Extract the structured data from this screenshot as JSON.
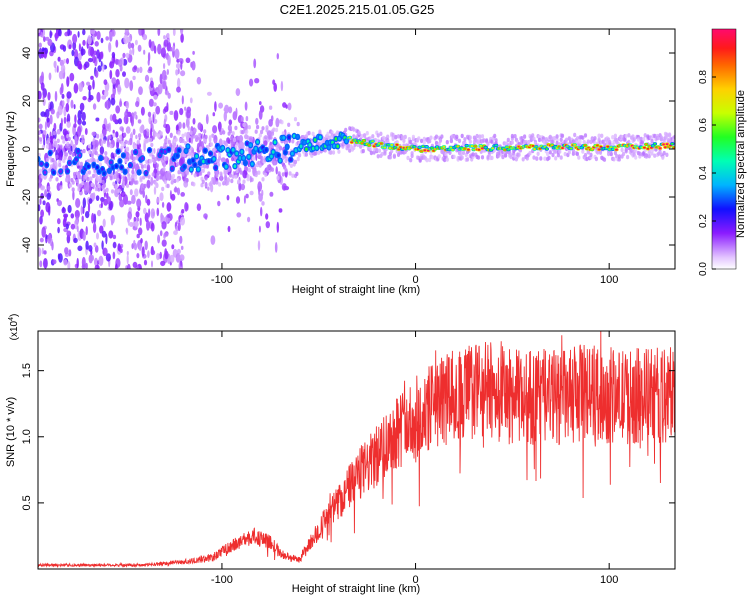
{
  "title": "C2E1.2025.215.01.05.G25",
  "chart_data": [
    {
      "type": "heatmap",
      "xlabel": "Height of straight line (km)",
      "ylabel": "Frequency (Hz)",
      "xlim": [
        -195,
        134
      ],
      "ylim": [
        -50,
        50
      ],
      "x_ticks": [
        -100,
        0,
        100
      ],
      "y_ticks": [
        -40,
        -20,
        0,
        20,
        40
      ],
      "colorbar": {
        "label": "Normalized spectral amplitude",
        "range": [
          0.0,
          1.0
        ],
        "ticks": [
          0.0,
          0.2,
          0.4,
          0.6,
          0.8
        ]
      },
      "ridge": {
        "description_points": [
          [
            -195,
            -5
          ],
          [
            -150,
            -6
          ],
          [
            -120,
            -4
          ],
          [
            -100,
            -3
          ],
          [
            -80,
            -1
          ],
          [
            -60,
            1
          ],
          [
            -45,
            3
          ],
          [
            -35,
            4
          ],
          [
            -20,
            2
          ],
          [
            0,
            0
          ],
          [
            20,
            0.5
          ],
          [
            50,
            0.5
          ],
          [
            80,
            1
          ],
          [
            100,
            0.5
          ],
          [
            134,
            1.5
          ]
        ]
      },
      "grid": false
    },
    {
      "type": "line",
      "xlabel": "Height of straight line (km)",
      "ylabel": "SNR (10 * v/v)",
      "y_multiplier": "(x10^4)",
      "xlim": [
        -195,
        134
      ],
      "ylim": [
        0,
        18000
      ],
      "x_ticks": [
        -100,
        0,
        100
      ],
      "y_ticks": [
        5000,
        10000,
        15000
      ],
      "y_tick_labels": [
        "0.5",
        "1.0",
        "1.5"
      ],
      "color": "#ee2e2e",
      "envelope": {
        "x": [
          -195,
          -140,
          -115,
          -105,
          -95,
          -85,
          -75,
          -68,
          -60,
          -50,
          -40,
          -30,
          -20,
          -10,
          0,
          10,
          20,
          30,
          40,
          50,
          60,
          70,
          80,
          90,
          100,
          110,
          120,
          134
        ],
        "y": [
          300,
          300,
          600,
          900,
          1700,
          2500,
          2000,
          1000,
          700,
          3000,
          5000,
          7000,
          8500,
          10500,
          11000,
          12500,
          13000,
          13500,
          13500,
          13000,
          13000,
          13000,
          13000,
          13500,
          13000,
          13000,
          13200,
          13000
        ]
      },
      "grid": false
    }
  ]
}
